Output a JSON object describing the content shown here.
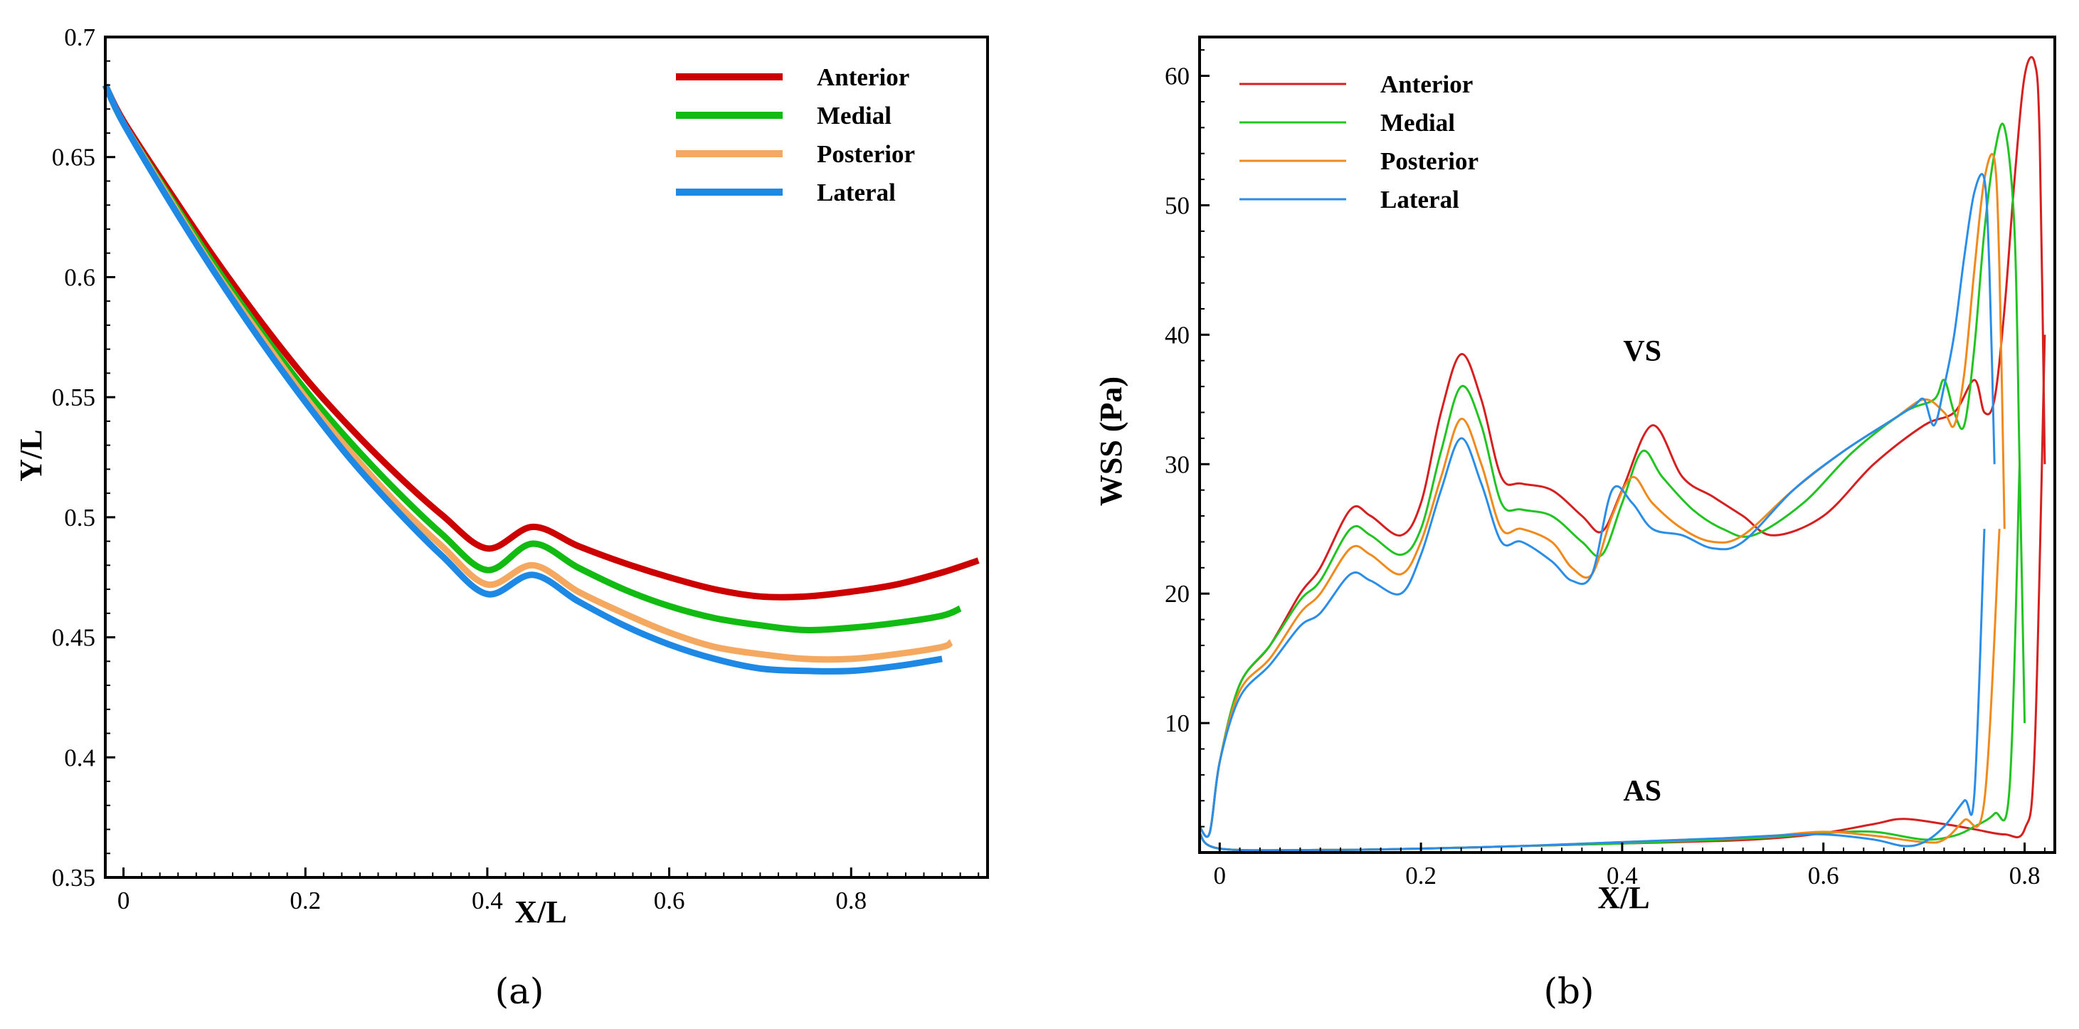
{
  "chart_data": [
    {
      "id": "a",
      "type": "line",
      "caption": "(a)",
      "xlabel": "X/L",
      "ylabel": "Y/L",
      "xlim": [
        -0.02,
        0.95
      ],
      "ylim": [
        0.35,
        0.7
      ],
      "xticks": [
        0,
        0.2,
        0.4,
        0.6,
        0.8
      ],
      "xtick_labels": [
        "0",
        "0.2",
        "0.4",
        "0.6",
        "0.8"
      ],
      "yticks": [
        0.35,
        0.4,
        0.45,
        0.5,
        0.55,
        0.6,
        0.65,
        0.7
      ],
      "ytick_labels": [
        "0.35",
        "0.4",
        "0.45",
        "0.5",
        "0.55",
        "0.6",
        "0.65",
        "0.7"
      ],
      "grid": false,
      "legend_position": "top-right",
      "line_width": "thick",
      "series": [
        {
          "name": "Anterior",
          "color": "#cc0000",
          "x": [
            -0.02,
            0.0,
            0.05,
            0.1,
            0.15,
            0.2,
            0.25,
            0.3,
            0.35,
            0.4,
            0.45,
            0.5,
            0.55,
            0.6,
            0.65,
            0.7,
            0.75,
            0.8,
            0.85,
            0.9,
            0.94
          ],
          "y": [
            0.68,
            0.665,
            0.636,
            0.608,
            0.582,
            0.558,
            0.537,
            0.518,
            0.501,
            0.487,
            0.496,
            0.488,
            0.481,
            0.475,
            0.47,
            0.467,
            0.467,
            0.469,
            0.472,
            0.477,
            0.482
          ]
        },
        {
          "name": "Medial",
          "color": "#11bb11",
          "x": [
            -0.02,
            0.0,
            0.05,
            0.1,
            0.15,
            0.2,
            0.25,
            0.3,
            0.35,
            0.4,
            0.45,
            0.5,
            0.55,
            0.6,
            0.65,
            0.7,
            0.75,
            0.8,
            0.85,
            0.9,
            0.92
          ],
          "y": [
            0.68,
            0.664,
            0.634,
            0.605,
            0.578,
            0.553,
            0.531,
            0.511,
            0.493,
            0.478,
            0.489,
            0.479,
            0.47,
            0.463,
            0.458,
            0.455,
            0.453,
            0.454,
            0.456,
            0.459,
            0.462
          ]
        },
        {
          "name": "Posterior",
          "color": "#f4a860",
          "x": [
            -0.02,
            0.0,
            0.05,
            0.1,
            0.15,
            0.2,
            0.25,
            0.3,
            0.35,
            0.4,
            0.45,
            0.5,
            0.55,
            0.6,
            0.65,
            0.7,
            0.75,
            0.8,
            0.85,
            0.9,
            0.91
          ],
          "y": [
            0.68,
            0.664,
            0.633,
            0.603,
            0.576,
            0.55,
            0.527,
            0.506,
            0.488,
            0.472,
            0.48,
            0.469,
            0.46,
            0.452,
            0.446,
            0.443,
            0.441,
            0.441,
            0.443,
            0.446,
            0.448
          ]
        },
        {
          "name": "Lateral",
          "color": "#1e88e5",
          "x": [
            -0.02,
            0.0,
            0.05,
            0.1,
            0.15,
            0.2,
            0.25,
            0.3,
            0.35,
            0.4,
            0.45,
            0.5,
            0.55,
            0.6,
            0.65,
            0.7,
            0.75,
            0.8,
            0.85,
            0.9
          ],
          "y": [
            0.68,
            0.664,
            0.632,
            0.602,
            0.574,
            0.548,
            0.524,
            0.503,
            0.484,
            0.468,
            0.476,
            0.465,
            0.455,
            0.447,
            0.441,
            0.437,
            0.436,
            0.436,
            0.438,
            0.441
          ]
        }
      ]
    },
    {
      "id": "b",
      "type": "line",
      "caption": "(b)",
      "xlabel": "X/L",
      "ylabel": "WSS (Pa)",
      "xlim": [
        -0.02,
        0.83
      ],
      "ylim": [
        0,
        63
      ],
      "xticks": [
        0,
        0.2,
        0.4,
        0.6,
        0.8
      ],
      "xtick_labels": [
        "0",
        "0.2",
        "0.4",
        "0.6",
        "0.8"
      ],
      "yticks": [
        10,
        20,
        30,
        40,
        50,
        60
      ],
      "ytick_labels": [
        "10",
        "20",
        "30",
        "40",
        "50",
        "60"
      ],
      "grid": false,
      "legend_position": "top-left",
      "line_width": "thin",
      "annotations": [
        {
          "text": "VS",
          "x": 0.42,
          "y": 38
        },
        {
          "text": "AS",
          "x": 0.42,
          "y": 4
        }
      ],
      "series": [
        {
          "name": "Anterior",
          "color": "#d62020",
          "x": [
            -0.02,
            -0.01,
            0.0,
            0.02,
            0.05,
            0.08,
            0.1,
            0.13,
            0.15,
            0.18,
            0.2,
            0.22,
            0.24,
            0.26,
            0.28,
            0.3,
            0.33,
            0.36,
            0.38,
            0.4,
            0.43,
            0.46,
            0.49,
            0.52,
            0.55,
            0.6,
            0.65,
            0.7,
            0.73,
            0.75,
            0.76,
            0.77,
            0.78,
            0.79,
            0.8,
            0.81,
            0.815,
            0.82
          ],
          "y": [
            2,
            1.5,
            7,
            13,
            16,
            20,
            22,
            26.5,
            26,
            24.5,
            27,
            34,
            38.5,
            35,
            29,
            28.5,
            28,
            26,
            24.8,
            28,
            33,
            29,
            27.5,
            26,
            24.5,
            26,
            30,
            33,
            34,
            36.5,
            34,
            35,
            42,
            52,
            60,
            61,
            55,
            30
          ]
        },
        {
          "name": "Medial",
          "color": "#22c422",
          "x": [
            -0.02,
            -0.01,
            0.0,
            0.02,
            0.05,
            0.08,
            0.1,
            0.13,
            0.15,
            0.18,
            0.2,
            0.22,
            0.24,
            0.26,
            0.28,
            0.3,
            0.33,
            0.36,
            0.38,
            0.4,
            0.42,
            0.44,
            0.47,
            0.5,
            0.53,
            0.58,
            0.63,
            0.68,
            0.71,
            0.72,
            0.73,
            0.74,
            0.75,
            0.76,
            0.77,
            0.78,
            0.79,
            0.795,
            0.8
          ],
          "y": [
            2,
            1.5,
            7,
            13,
            16,
            19.5,
            21,
            25,
            24.5,
            23,
            25,
            31,
            36,
            33,
            27,
            26.5,
            26,
            24,
            23,
            27,
            31,
            29,
            26.5,
            25,
            24.5,
            27,
            31,
            34,
            35,
            36.5,
            34,
            33,
            39,
            48,
            54,
            56,
            48,
            30,
            10
          ]
        },
        {
          "name": "Posterior",
          "color": "#f08a1c",
          "x": [
            -0.02,
            -0.01,
            0.0,
            0.02,
            0.05,
            0.08,
            0.1,
            0.13,
            0.15,
            0.18,
            0.2,
            0.22,
            0.24,
            0.26,
            0.28,
            0.3,
            0.33,
            0.35,
            0.37,
            0.39,
            0.41,
            0.43,
            0.46,
            0.49,
            0.52,
            0.57,
            0.62,
            0.67,
            0.7,
            0.72,
            0.73,
            0.74,
            0.75,
            0.76,
            0.77,
            0.775,
            0.78
          ],
          "y": [
            2,
            1.5,
            7,
            12.5,
            15,
            18.5,
            20,
            23.5,
            23,
            21.5,
            24,
            29,
            33.5,
            30,
            25,
            25,
            24,
            22,
            21.5,
            26,
            29,
            27,
            25,
            24,
            24.5,
            28,
            31,
            33.5,
            35,
            34,
            33,
            37,
            45,
            52,
            53.5,
            45,
            25
          ]
        },
        {
          "name": "Lateral",
          "color": "#2a8ee8",
          "x": [
            -0.02,
            -0.01,
            0.0,
            0.02,
            0.05,
            0.08,
            0.1,
            0.13,
            0.15,
            0.18,
            0.2,
            0.22,
            0.24,
            0.26,
            0.28,
            0.3,
            0.33,
            0.35,
            0.37,
            0.39,
            0.41,
            0.43,
            0.46,
            0.49,
            0.52,
            0.57,
            0.62,
            0.67,
            0.69,
            0.7,
            0.71,
            0.72,
            0.73,
            0.74,
            0.75,
            0.76,
            0.765,
            0.77
          ],
          "y": [
            2,
            1.5,
            7,
            12,
            14.5,
            17.5,
            18.5,
            21.5,
            21,
            20,
            23,
            28,
            32,
            28.5,
            24,
            24,
            22.5,
            21,
            21.5,
            28,
            27,
            25,
            24.5,
            23.5,
            24,
            28,
            31,
            33.5,
            34.5,
            35,
            33,
            36,
            40,
            46,
            51,
            52,
            45,
            30
          ]
        },
        {
          "name": "Anterior AS",
          "legend": false,
          "color": "#d62020",
          "x": [
            -0.02,
            0.0,
            0.1,
            0.2,
            0.3,
            0.4,
            0.5,
            0.55,
            0.6,
            0.65,
            0.68,
            0.72,
            0.75,
            0.78,
            0.8,
            0.81,
            0.82
          ],
          "y": [
            1.5,
            0.3,
            0.2,
            0.3,
            0.5,
            0.7,
            0.9,
            1.1,
            1.5,
            2.2,
            2.6,
            2.2,
            1.8,
            1.4,
            1.8,
            8,
            40
          ]
        },
        {
          "name": "Medial AS",
          "legend": false,
          "color": "#22c422",
          "x": [
            -0.02,
            0.0,
            0.1,
            0.2,
            0.3,
            0.4,
            0.5,
            0.55,
            0.6,
            0.65,
            0.7,
            0.73,
            0.75,
            0.77,
            0.785,
            0.795
          ],
          "y": [
            1.5,
            0.3,
            0.2,
            0.3,
            0.5,
            0.7,
            1.0,
            1.2,
            1.5,
            1.6,
            1.0,
            1.3,
            2.0,
            3.0,
            5,
            30
          ]
        },
        {
          "name": "Posterior AS",
          "legend": false,
          "color": "#f08a1c",
          "x": [
            -0.02,
            0.0,
            0.1,
            0.2,
            0.3,
            0.4,
            0.5,
            0.55,
            0.6,
            0.65,
            0.7,
            0.72,
            0.74,
            0.76,
            0.775
          ],
          "y": [
            1.5,
            0.3,
            0.2,
            0.3,
            0.5,
            0.8,
            1.1,
            1.3,
            1.6,
            1.3,
            0.8,
            1.0,
            2.5,
            4,
            25
          ]
        },
        {
          "name": "Lateral AS",
          "legend": false,
          "color": "#2a8ee8",
          "x": [
            -0.02,
            0.0,
            0.1,
            0.2,
            0.3,
            0.4,
            0.5,
            0.55,
            0.6,
            0.65,
            0.68,
            0.7,
            0.72,
            0.74,
            0.75,
            0.76
          ],
          "y": [
            1.5,
            0.3,
            0.2,
            0.3,
            0.5,
            0.8,
            1.1,
            1.3,
            1.4,
            1.0,
            0.5,
            0.8,
            2.0,
            4.0,
            4.5,
            25
          ]
        }
      ]
    }
  ]
}
